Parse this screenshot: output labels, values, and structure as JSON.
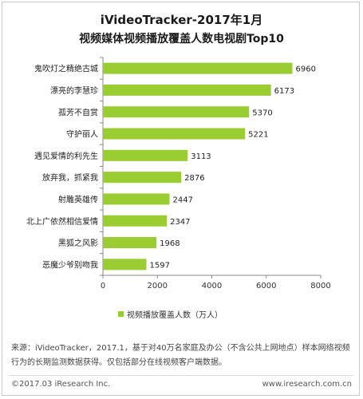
{
  "title_line1": "iVideoTracker-2017年1月",
  "title_line2": "视频媒体视频播放覆盖人数电视剧Top10",
  "chart_data": {
    "type": "bar",
    "orientation": "horizontal",
    "categories": [
      "鬼吹灯之精绝古城",
      "漂亮的李慧珍",
      "孤芳不自赏",
      "守护丽人",
      "遇见爱情的利先生",
      "放弃我，抓紧我",
      "射雕英雄传",
      "北上广依然相信爱情",
      "黑狐之风影",
      "恶魔少爷别吻我"
    ],
    "series": [
      {
        "name": "视频播放覆盖人数（万人）",
        "values": [
          6960,
          6173,
          5370,
          5221,
          3113,
          2876,
          2447,
          2347,
          1968,
          1597
        ],
        "color": "#9acd32"
      }
    ],
    "x_ticks": [
      "0",
      "2000",
      "4000",
      "6000",
      "8000"
    ],
    "xlim": [
      0,
      8000
    ],
    "legend_position": "bottom"
  },
  "source_text": "来源：iVideoTracker，2017.1，基于对40万名家庭及办公（不含公共上网地点）样本网络视频行为的长期监测数据获得。仅包括部分在线视频客户端数据。",
  "footer": {
    "copyright": "©2017.03 iResearch Inc.",
    "website": "www.iresearch.com.cn"
  }
}
